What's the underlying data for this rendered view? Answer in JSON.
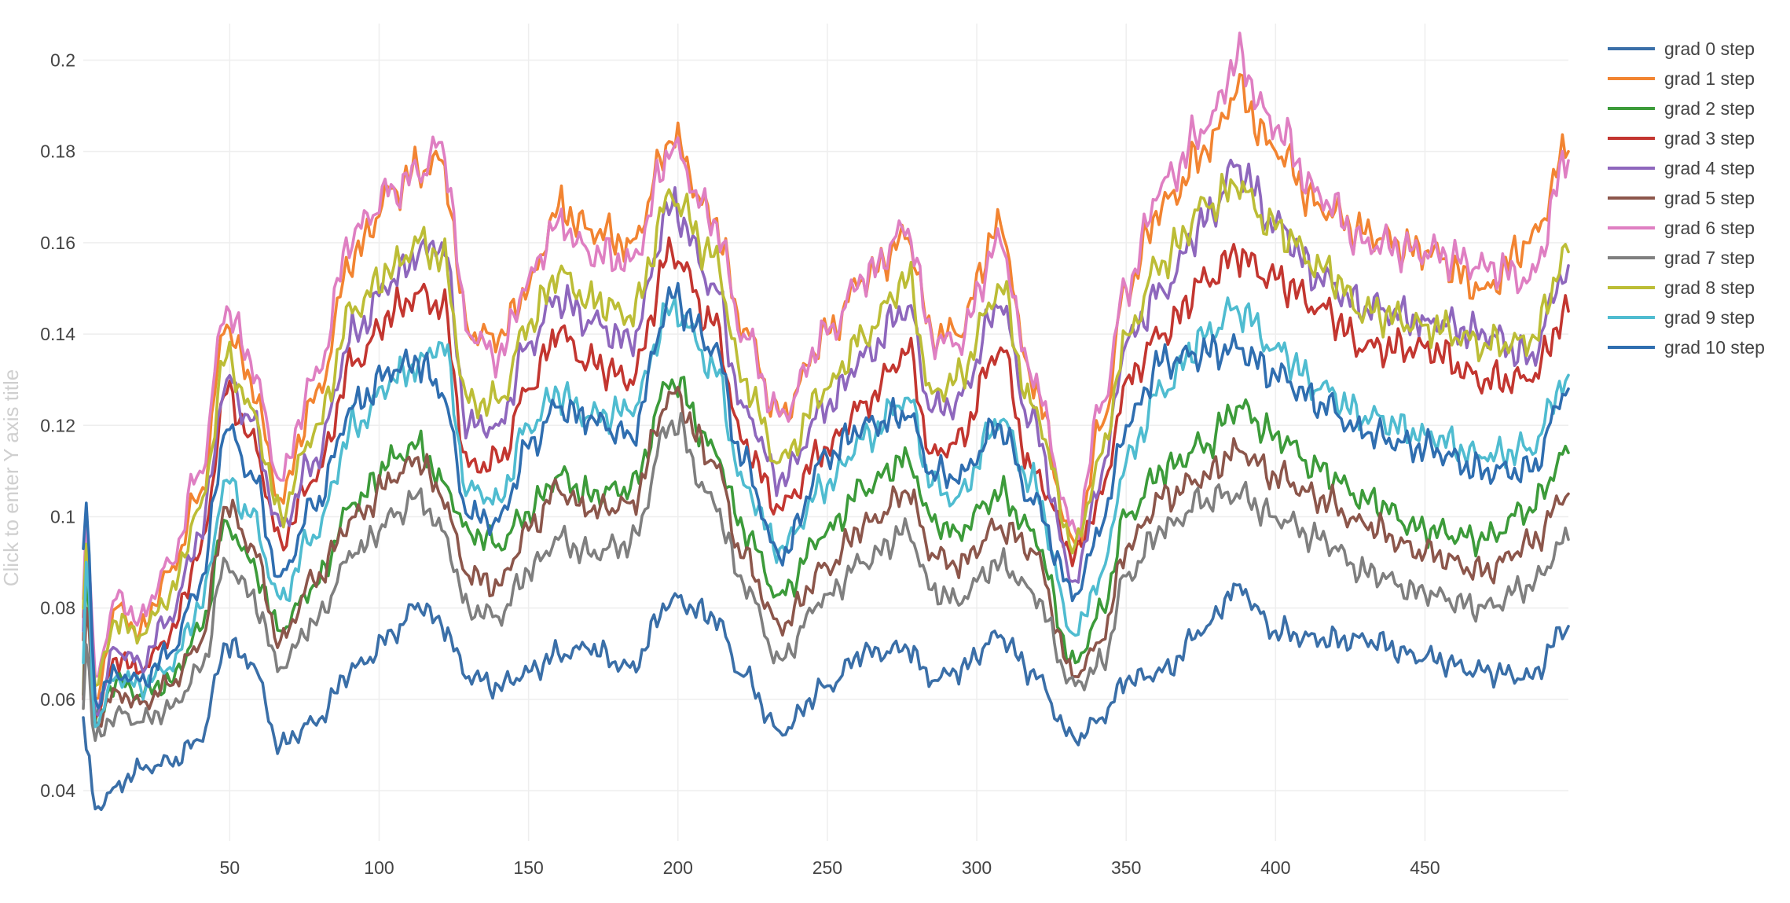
{
  "chart_data": {
    "type": "line",
    "title": "",
    "xlabel": "",
    "ylabel_placeholder": "Click to enter Y axis title",
    "xlim": [
      1,
      498
    ],
    "ylim": [
      0.029,
      0.208
    ],
    "x_ticks": [
      50,
      100,
      150,
      200,
      250,
      300,
      350,
      400,
      450
    ],
    "x_tick_labels": [
      "50",
      "100",
      "150",
      "200",
      "250",
      "300",
      "350",
      "400",
      "450"
    ],
    "y_ticks": [
      0.04,
      0.06,
      0.08,
      0.1,
      0.12,
      0.14,
      0.16,
      0.18,
      0.2
    ],
    "y_tick_labels": [
      "0.04",
      "0.06",
      "0.08",
      "0.1",
      "0.12",
      "0.14",
      "0.16",
      "0.18",
      "0.2"
    ],
    "grid": true,
    "legend_position": "top-right",
    "x_knots": [
      1,
      2,
      5,
      12,
      20,
      30,
      40,
      49,
      57,
      67,
      78,
      92,
      105,
      113,
      121,
      130,
      140,
      150,
      160,
      170,
      184,
      198,
      212,
      222,
      234,
      250,
      262,
      277,
      285,
      293,
      308,
      318,
      333,
      342,
      350,
      362,
      377,
      387,
      400,
      415,
      430,
      450,
      470,
      485,
      498
    ],
    "series": [
      {
        "name": "grad 0 step",
        "color": "#3a6fa8",
        "values": [
          0.056,
          0.049,
          0.036,
          0.041,
          0.045,
          0.046,
          0.051,
          0.072,
          0.068,
          0.05,
          0.055,
          0.067,
          0.074,
          0.081,
          0.076,
          0.065,
          0.063,
          0.066,
          0.07,
          0.071,
          0.067,
          0.082,
          0.078,
          0.065,
          0.053,
          0.063,
          0.07,
          0.071,
          0.064,
          0.066,
          0.074,
          0.066,
          0.051,
          0.056,
          0.064,
          0.066,
          0.076,
          0.085,
          0.075,
          0.073,
          0.073,
          0.069,
          0.066,
          0.065,
          0.076
        ]
      },
      {
        "name": "grad 1 step",
        "color": "#f28431",
        "values": [
          0.078,
          0.101,
          0.06,
          0.08,
          0.075,
          0.088,
          0.105,
          0.142,
          0.13,
          0.104,
          0.125,
          0.158,
          0.172,
          0.176,
          0.178,
          0.14,
          0.139,
          0.15,
          0.168,
          0.163,
          0.16,
          0.182,
          0.165,
          0.141,
          0.122,
          0.14,
          0.152,
          0.161,
          0.14,
          0.14,
          0.164,
          0.13,
          0.094,
          0.12,
          0.15,
          0.168,
          0.18,
          0.193,
          0.18,
          0.168,
          0.162,
          0.158,
          0.15,
          0.16,
          0.18
        ]
      },
      {
        "name": "grad 2 step",
        "color": "#3c9b3a",
        "values": [
          0.061,
          0.088,
          0.055,
          0.064,
          0.061,
          0.064,
          0.075,
          0.099,
          0.09,
          0.075,
          0.085,
          0.103,
          0.113,
          0.116,
          0.108,
          0.097,
          0.094,
          0.101,
          0.109,
          0.105,
          0.106,
          0.13,
          0.115,
          0.097,
          0.083,
          0.097,
          0.106,
          0.113,
          0.099,
          0.097,
          0.105,
          0.097,
          0.068,
          0.08,
          0.1,
          0.11,
          0.116,
          0.124,
          0.118,
          0.11,
          0.104,
          0.097,
          0.095,
          0.102,
          0.114
        ]
      },
      {
        "name": "grad 3 step",
        "color": "#c33630",
        "values": [
          0.073,
          0.097,
          0.056,
          0.069,
          0.066,
          0.074,
          0.092,
          0.127,
          0.118,
          0.095,
          0.108,
          0.134,
          0.145,
          0.149,
          0.146,
          0.111,
          0.112,
          0.128,
          0.14,
          0.134,
          0.13,
          0.158,
          0.142,
          0.116,
          0.102,
          0.115,
          0.125,
          0.136,
          0.114,
          0.116,
          0.137,
          0.111,
          0.092,
          0.105,
          0.13,
          0.14,
          0.152,
          0.157,
          0.152,
          0.146,
          0.137,
          0.137,
          0.13,
          0.13,
          0.145
        ]
      },
      {
        "name": "grad 4 step",
        "color": "#8e67bd",
        "values": [
          0.075,
          0.096,
          0.057,
          0.071,
          0.068,
          0.078,
          0.096,
          0.13,
          0.121,
          0.098,
          0.112,
          0.141,
          0.152,
          0.157,
          0.16,
          0.12,
          0.12,
          0.138,
          0.148,
          0.143,
          0.138,
          0.168,
          0.151,
          0.124,
          0.108,
          0.124,
          0.135,
          0.146,
          0.123,
          0.125,
          0.146,
          0.121,
          0.086,
          0.11,
          0.138,
          0.15,
          0.165,
          0.177,
          0.164,
          0.152,
          0.146,
          0.143,
          0.14,
          0.135,
          0.155
        ]
      },
      {
        "name": "grad 5 step",
        "color": "#8c564b",
        "values": [
          0.06,
          0.08,
          0.055,
          0.062,
          0.059,
          0.063,
          0.072,
          0.102,
          0.094,
          0.073,
          0.086,
          0.1,
          0.108,
          0.113,
          0.104,
          0.087,
          0.085,
          0.097,
          0.106,
          0.101,
          0.103,
          0.127,
          0.112,
          0.091,
          0.076,
          0.089,
          0.098,
          0.105,
          0.092,
          0.089,
          0.098,
          0.093,
          0.065,
          0.073,
          0.093,
          0.104,
          0.109,
          0.115,
          0.109,
          0.104,
          0.098,
          0.092,
          0.088,
          0.094,
          0.105
        ]
      },
      {
        "name": "grad 6 step",
        "color": "#df7fc2",
        "values": [
          0.082,
          0.1,
          0.065,
          0.082,
          0.078,
          0.09,
          0.11,
          0.146,
          0.134,
          0.108,
          0.13,
          0.163,
          0.172,
          0.175,
          0.182,
          0.14,
          0.135,
          0.152,
          0.165,
          0.158,
          0.156,
          0.18,
          0.165,
          0.14,
          0.122,
          0.14,
          0.152,
          0.163,
          0.139,
          0.138,
          0.16,
          0.131,
          0.097,
          0.125,
          0.15,
          0.173,
          0.185,
          0.2,
          0.185,
          0.17,
          0.16,
          0.158,
          0.155,
          0.152,
          0.178
        ]
      },
      {
        "name": "grad 7 step",
        "color": "#7f7f7f",
        "values": [
          0.058,
          0.072,
          0.051,
          0.057,
          0.055,
          0.058,
          0.066,
          0.09,
          0.083,
          0.067,
          0.077,
          0.092,
          0.1,
          0.105,
          0.097,
          0.08,
          0.078,
          0.088,
          0.095,
          0.092,
          0.094,
          0.121,
          0.103,
          0.085,
          0.069,
          0.083,
          0.09,
          0.097,
          0.084,
          0.082,
          0.09,
          0.084,
          0.063,
          0.068,
          0.087,
          0.097,
          0.104,
          0.105,
          0.1,
          0.095,
          0.088,
          0.083,
          0.08,
          0.085,
          0.095
        ]
      },
      {
        "name": "grad 8 step",
        "color": "#bcbd36",
        "values": [
          0.08,
          0.094,
          0.063,
          0.077,
          0.074,
          0.083,
          0.102,
          0.135,
          0.124,
          0.101,
          0.118,
          0.146,
          0.155,
          0.16,
          0.157,
          0.125,
          0.125,
          0.142,
          0.153,
          0.148,
          0.144,
          0.17,
          0.157,
          0.13,
          0.112,
          0.128,
          0.14,
          0.152,
          0.127,
          0.13,
          0.15,
          0.125,
          0.094,
          0.114,
          0.14,
          0.156,
          0.168,
          0.172,
          0.163,
          0.155,
          0.145,
          0.142,
          0.138,
          0.138,
          0.158
        ]
      },
      {
        "name": "grad 9 step",
        "color": "#4fbcd0",
        "values": [
          0.068,
          0.09,
          0.054,
          0.065,
          0.063,
          0.067,
          0.08,
          0.108,
          0.1,
          0.082,
          0.096,
          0.12,
          0.13,
          0.133,
          0.138,
          0.106,
          0.104,
          0.12,
          0.127,
          0.122,
          0.123,
          0.146,
          0.133,
          0.107,
          0.093,
          0.107,
          0.117,
          0.126,
          0.107,
          0.104,
          0.121,
          0.108,
          0.074,
          0.088,
          0.112,
          0.128,
          0.14,
          0.146,
          0.137,
          0.128,
          0.122,
          0.118,
          0.113,
          0.115,
          0.131
        ]
      },
      {
        "name": "grad 10 step",
        "color": "#2f6eb0",
        "values": [
          0.093,
          0.103,
          0.06,
          0.066,
          0.064,
          0.07,
          0.085,
          0.119,
          0.11,
          0.087,
          0.102,
          0.125,
          0.132,
          0.134,
          0.127,
          0.1,
          0.099,
          0.115,
          0.124,
          0.121,
          0.118,
          0.148,
          0.137,
          0.112,
          0.091,
          0.113,
          0.12,
          0.122,
          0.11,
          0.108,
          0.12,
          0.104,
          0.083,
          0.098,
          0.12,
          0.134,
          0.136,
          0.137,
          0.131,
          0.125,
          0.118,
          0.115,
          0.11,
          0.11,
          0.128
        ]
      }
    ]
  }
}
